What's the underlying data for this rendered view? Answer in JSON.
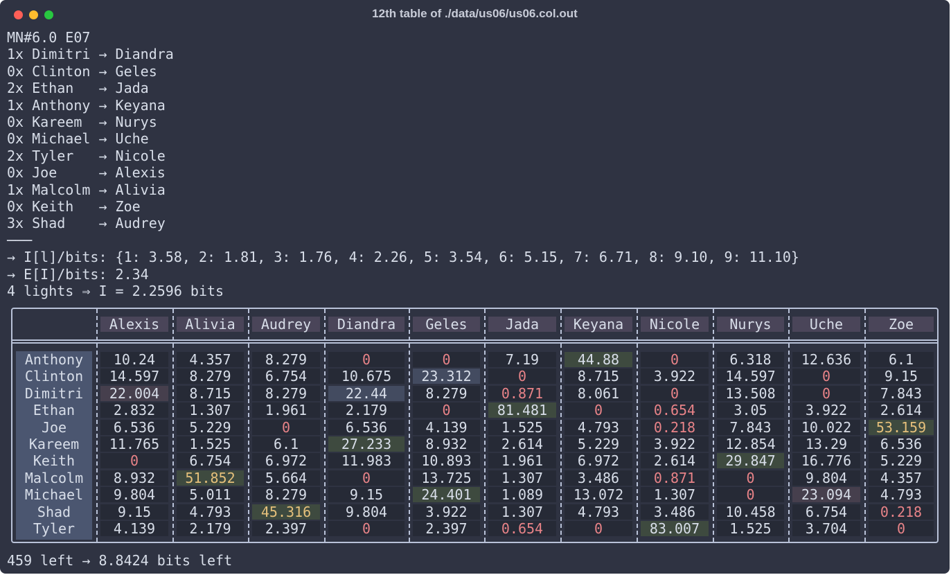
{
  "window": {
    "title": "12th table of ./data/us06/us06.col.out"
  },
  "lines": [
    "MN#6.0 E07",
    "1x Dimitri → Diandra",
    "0x Clinton → Geles",
    "2x Ethan   → Jada",
    "1x Anthony → Keyana",
    "0x Kareem  → Nurys",
    "0x Michael → Uche",
    "2x Tyler   → Nicole",
    "0x Joe     → Alexis",
    "1x Malcolm → Alivia",
    "0x Keith   → Zoe",
    "3x Shad    → Audrey",
    "───",
    "→ I[l]/bits: {1: 3.58, 2: 1.81, 3: 1.76, 4: 2.26, 5: 3.54, 6: 5.15, 7: 6.71, 8: 9.10, 9: 11.10}",
    "→ E[I]/bits: 2.34",
    "4 lights ⇒ I = 2.2596 bits"
  ],
  "table": {
    "columns": [
      "Alexis",
      "Alivia",
      "Audrey",
      "Diandra",
      "Geles",
      "Jada",
      "Keyana",
      "Nicole",
      "Nurys",
      "Uche",
      "Zoe"
    ],
    "rows": [
      {
        "name": "Anthony",
        "cells": [
          "10.24",
          "4.357",
          "8.279",
          {
            "text": "0",
            "fg": "#e88388"
          },
          {
            "text": "0",
            "fg": "#e88388"
          },
          "7.19",
          {
            "text": "44.88",
            "bg": "#3e4a3f"
          },
          {
            "text": "0",
            "fg": "#e88388"
          },
          "6.318",
          "12.636",
          "6.1"
        ]
      },
      {
        "name": "Clinton",
        "cells": [
          "14.597",
          "8.279",
          "6.754",
          "10.675",
          {
            "text": "23.312",
            "bg": "#434b60"
          },
          {
            "text": "0",
            "fg": "#e88388"
          },
          "8.715",
          "3.922",
          "14.597",
          {
            "text": "0",
            "fg": "#e88388"
          },
          "9.15"
        ]
      },
      {
        "name": "Dimitri",
        "cells": [
          {
            "text": "22.004",
            "bg": "#463f4d"
          },
          "8.715",
          "8.279",
          {
            "text": "22.44",
            "bg": "#434b60"
          },
          "8.279",
          {
            "text": "0.871",
            "fg": "#e88388"
          },
          "8.061",
          {
            "text": "0",
            "fg": "#e88388"
          },
          "13.508",
          {
            "text": "0",
            "fg": "#e88388"
          },
          "7.843"
        ]
      },
      {
        "name": "Ethan",
        "cells": [
          "2.832",
          "1.307",
          "1.961",
          "2.179",
          {
            "text": "0",
            "fg": "#e88388"
          },
          {
            "text": "81.481",
            "bg": "#3e4a3f"
          },
          {
            "text": "0",
            "fg": "#e88388"
          },
          {
            "text": "0.654",
            "fg": "#e88388"
          },
          "3.05",
          "3.922",
          "2.614"
        ]
      },
      {
        "name": "Joe",
        "cells": [
          "6.536",
          "5.229",
          {
            "text": "0",
            "fg": "#e88388"
          },
          "6.536",
          "4.139",
          "1.525",
          "4.793",
          {
            "text": "0.218",
            "fg": "#e88388"
          },
          "7.843",
          "10.022",
          {
            "text": "53.159",
            "bg": "#3e4a3f",
            "fg": "#e5c07b"
          }
        ]
      },
      {
        "name": "Kareem",
        "cells": [
          "11.765",
          "1.525",
          "6.1",
          {
            "text": "27.233",
            "bg": "#3e4a3f"
          },
          "8.932",
          "2.614",
          "5.229",
          "3.922",
          "12.854",
          "13.29",
          "6.536"
        ]
      },
      {
        "name": "Keith",
        "cells": [
          {
            "text": "0",
            "fg": "#e88388"
          },
          "6.754",
          "6.972",
          "11.983",
          "10.893",
          "1.961",
          "6.972",
          "2.614",
          {
            "text": "29.847",
            "bg": "#3e4a3f"
          },
          "16.776",
          "5.229"
        ]
      },
      {
        "name": "Malcolm",
        "cells": [
          "8.932",
          {
            "text": "51.852",
            "bg": "#3e4a3f",
            "fg": "#e5c07b"
          },
          "5.664",
          {
            "text": "0",
            "fg": "#e88388"
          },
          "13.725",
          "1.307",
          "3.486",
          {
            "text": "0.871",
            "fg": "#e88388"
          },
          {
            "text": "0",
            "fg": "#e88388"
          },
          "9.804",
          "4.357"
        ]
      },
      {
        "name": "Michael",
        "cells": [
          "9.804",
          "5.011",
          "8.279",
          "9.15",
          {
            "text": "24.401",
            "bg": "#3e4a3f"
          },
          "1.089",
          "13.072",
          "1.307",
          {
            "text": "0",
            "fg": "#e88388"
          },
          {
            "text": "23.094",
            "bg": "#463f4d"
          },
          "4.793"
        ]
      },
      {
        "name": "Shad",
        "cells": [
          "9.15",
          "4.793",
          {
            "text": "45.316",
            "bg": "#3e4a3f",
            "fg": "#e5c07b"
          },
          "9.804",
          "3.922",
          "1.307",
          "4.793",
          "3.486",
          "10.458",
          "6.754",
          {
            "text": "0.218",
            "fg": "#e88388"
          }
        ]
      },
      {
        "name": "Tyler",
        "cells": [
          "4.139",
          "2.179",
          "2.397",
          {
            "text": "0",
            "fg": "#e88388"
          },
          "2.397",
          {
            "text": "0.654",
            "fg": "#e88388"
          },
          {
            "text": "0",
            "fg": "#e88388"
          },
          {
            "text": "83.007",
            "bg": "#3e4a3f"
          },
          "1.525",
          "3.704",
          {
            "text": "0",
            "fg": "#e88388"
          }
        ]
      }
    ]
  },
  "footer": "459 left → 8.8424 bits left"
}
